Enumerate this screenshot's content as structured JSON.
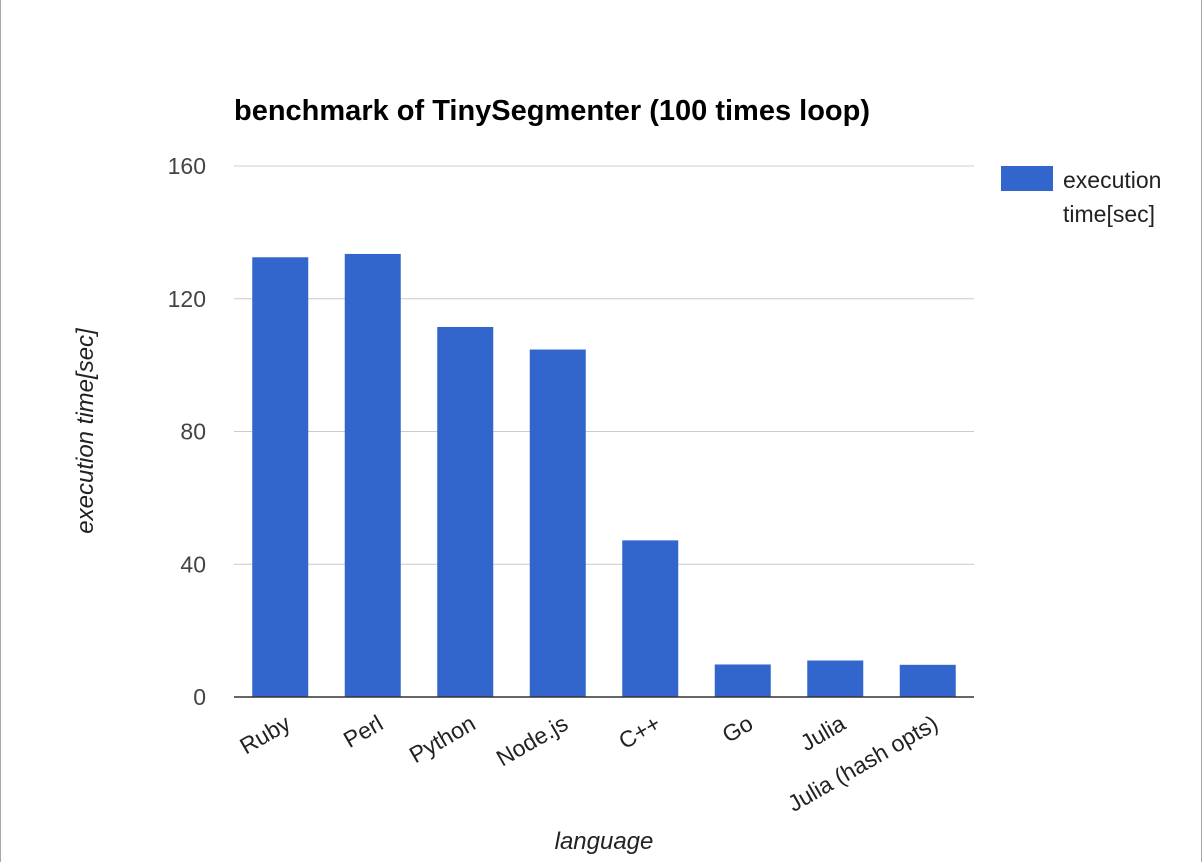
{
  "chart_data": {
    "type": "bar",
    "title": "benchmark of TinySegmenter (100 times loop)",
    "xlabel": "language",
    "ylabel": "execution time[sec]",
    "categories": [
      "Ruby",
      "Perl",
      "Python",
      "Node.js",
      "C++",
      "Go",
      "Julia",
      "Julia (hash opts)"
    ],
    "series": [
      {
        "name": "execution time[sec]",
        "color": "#3366cc",
        "values": [
          132.5,
          133.5,
          111.5,
          104.7,
          47.2,
          9.8,
          11.0,
          9.7
        ]
      }
    ],
    "ylim": [
      0,
      160
    ],
    "yticks": [
      "0",
      "40",
      "80",
      "120",
      "160"
    ],
    "grid": true,
    "legend": {
      "position": "right",
      "lines": [
        "execution",
        "time[sec]"
      ]
    }
  }
}
